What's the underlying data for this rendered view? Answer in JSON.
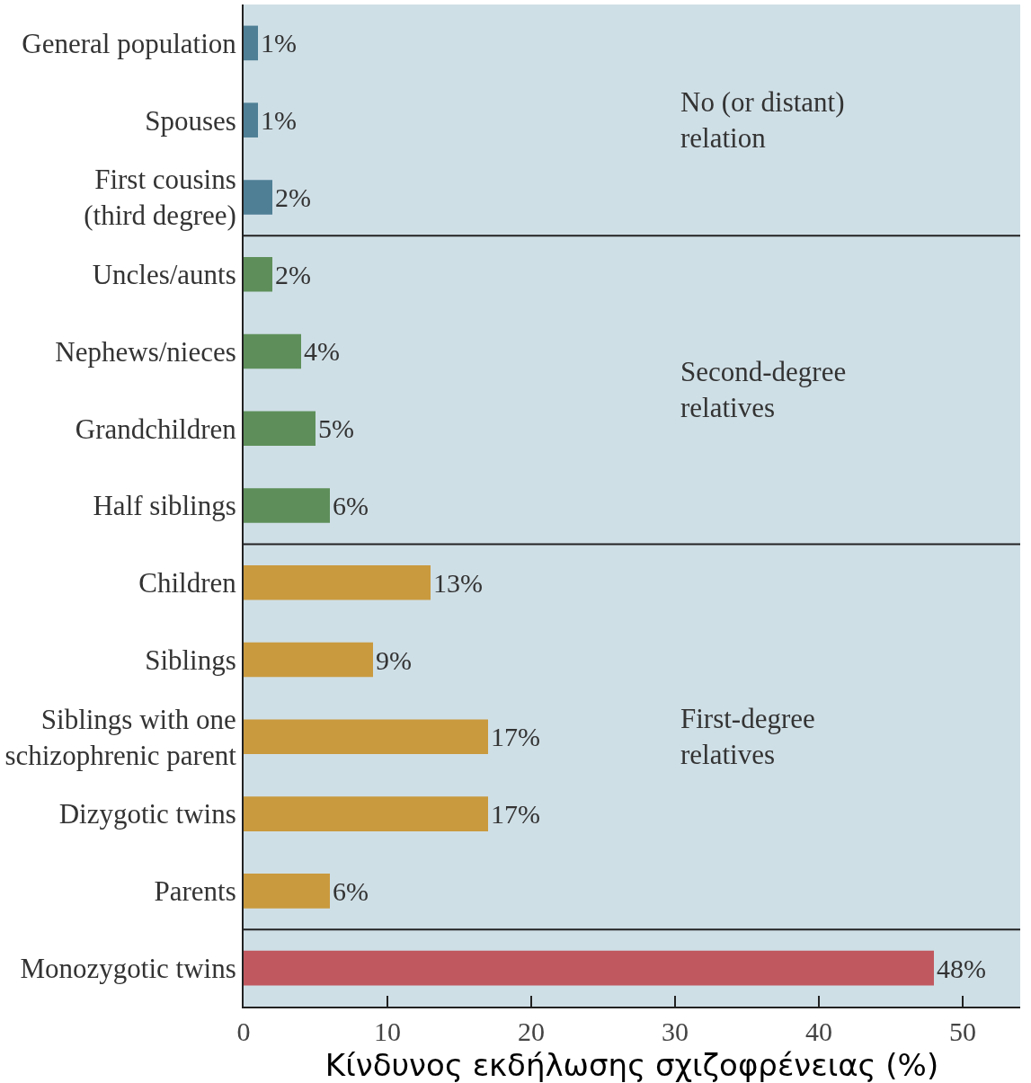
{
  "chart_data": {
    "type": "bar",
    "orientation": "horizontal",
    "xlabel": "Κίνδυνος εκδήλωσης σχιζοφρένειας (%)",
    "categories": [
      "General population",
      "Spouses",
      "First cousins\n(third degree)",
      "Uncles/aunts",
      "Nephews/nieces",
      "Grandchildren",
      "Half siblings",
      "Children",
      "Siblings",
      "Siblings with one\nschizophrenic parent",
      "Dizygotic twins",
      "Parents",
      "Monozygotic twins"
    ],
    "values": [
      1,
      1,
      2,
      2,
      4,
      5,
      6,
      13,
      9,
      17,
      17,
      6,
      48
    ],
    "value_labels": [
      "1%",
      "1%",
      "2%",
      "2%",
      "4%",
      "5%",
      "6%",
      "13%",
      "9%",
      "17%",
      "17%",
      "6%",
      "48%"
    ],
    "colors": [
      "#4e7f95",
      "#4e7f95",
      "#4e7f95",
      "#5e8f5a",
      "#5e8f5a",
      "#5e8f5a",
      "#5e8f5a",
      "#c99a3e",
      "#c99a3e",
      "#c99a3e",
      "#c99a3e",
      "#c99a3e",
      "#c0585f"
    ],
    "bands": [
      {
        "axis": "y",
        "from": "General population",
        "to": "First cousins\n(third degree)",
        "label": "No (or distant)\nrelation",
        "color": "#cfdfe6"
      },
      {
        "axis": "y",
        "from": "Uncles/aunts",
        "to": "Half siblings",
        "label": "Second-degree\nrelatives",
        "color": "#cfdfe6"
      },
      {
        "axis": "y",
        "from": "Children",
        "to": "Parents",
        "label": "First-degree\nrelatives",
        "color": "#cfdfe6"
      },
      {
        "axis": "y",
        "from": "Monozygotic twins",
        "to": "Monozygotic twins",
        "label": null,
        "color": "#cfdfe6"
      }
    ],
    "xlim": [
      0,
      54
    ],
    "xticks": [
      0,
      10,
      20,
      30,
      40,
      50
    ],
    "grid": false
  }
}
